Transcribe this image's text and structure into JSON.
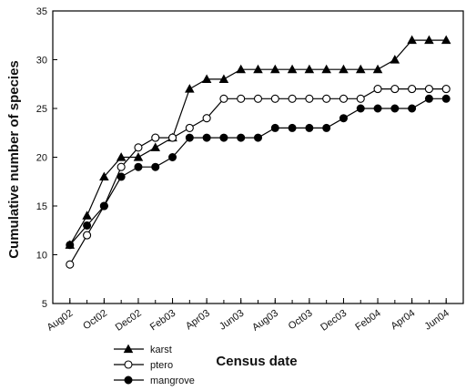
{
  "chart_data": {
    "type": "line",
    "title": "",
    "xlabel": "Census date",
    "ylabel": "Cumulative number of species",
    "ylim": [
      5,
      35
    ],
    "yticks": [
      "5",
      "10",
      "15",
      "20",
      "25",
      "30",
      "35"
    ],
    "xlim": [
      1,
      49
    ],
    "xticks": [
      {
        "x": 3,
        "label": "Aug02"
      },
      {
        "x": 7,
        "label": "Oct02"
      },
      {
        "x": 11,
        "label": "Dec02"
      },
      {
        "x": 15,
        "label": "Feb03"
      },
      {
        "x": 19,
        "label": "Apr03"
      },
      {
        "x": 23,
        "label": "Jun03"
      },
      {
        "x": 27,
        "label": "Aug03"
      },
      {
        "x": 31,
        "label": "Oct03"
      },
      {
        "x": 35,
        "label": "Dec03"
      },
      {
        "x": 39,
        "label": "Feb04"
      },
      {
        "x": 43,
        "label": "Apr04"
      },
      {
        "x": 47,
        "label": "Jun04"
      }
    ],
    "x": [
      3,
      5,
      7,
      9,
      11,
      13,
      15,
      17,
      19,
      21,
      23,
      25,
      27,
      29,
      31,
      33,
      35,
      37,
      39,
      41,
      43,
      45,
      47
    ],
    "grid": false,
    "legend_position": "bottom-left",
    "series": [
      {
        "name": "karst",
        "marker": "triangle",
        "values": [
          11,
          14,
          18,
          20,
          20,
          21,
          22,
          27,
          28,
          28,
          29,
          29,
          29,
          29,
          29,
          29,
          29,
          29,
          29,
          30,
          32,
          32,
          32
        ]
      },
      {
        "name": "ptero",
        "marker": "open-circle",
        "values": [
          9,
          12,
          15,
          19,
          21,
          22,
          22,
          23,
          24,
          26,
          26,
          26,
          26,
          26,
          26,
          26,
          26,
          26,
          27,
          27,
          27,
          27,
          27
        ]
      },
      {
        "name": "mangrove",
        "marker": "filled-circle",
        "values": [
          11,
          13,
          15,
          18,
          19,
          19,
          20,
          22,
          22,
          22,
          22,
          22,
          23,
          23,
          23,
          23,
          24,
          25,
          25,
          25,
          25,
          26,
          26
        ]
      }
    ]
  }
}
